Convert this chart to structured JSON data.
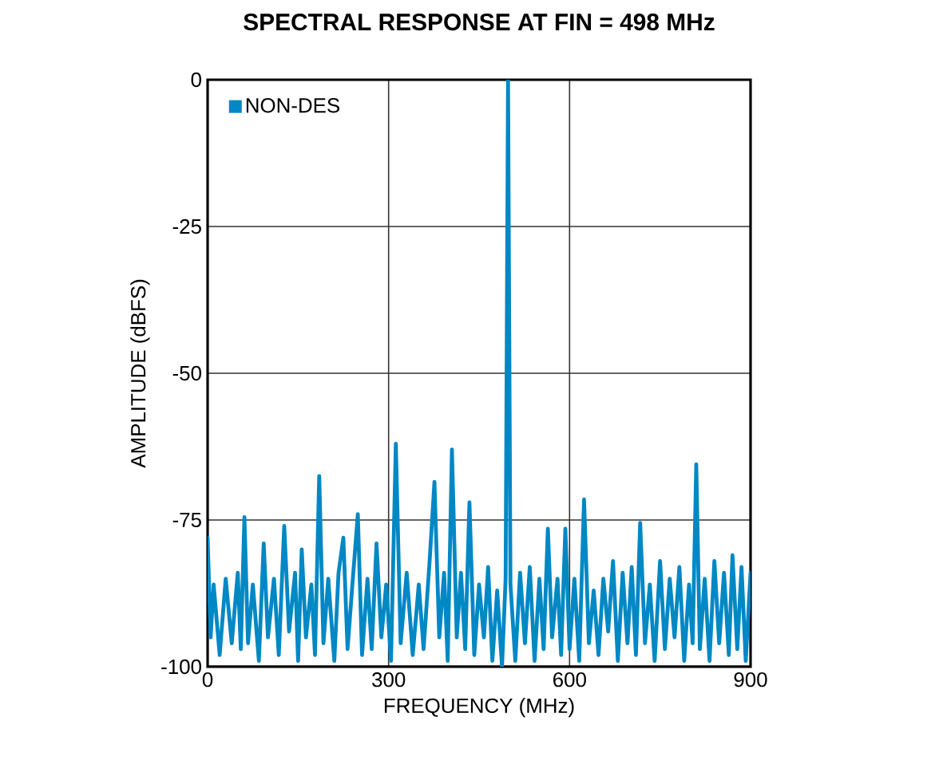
{
  "chart_data": {
    "type": "line",
    "title": "SPECTRAL RESPONSE AT FIN = 498 MHz",
    "xlabel": "FREQUENCY (MHz)",
    "ylabel": "AMPLITUDE (dBFS)",
    "x": [
      0,
      5,
      10,
      20,
      30,
      40,
      50,
      55,
      61,
      67,
      75,
      85,
      93,
      100,
      110,
      118,
      127,
      135,
      145,
      150,
      156,
      163,
      172,
      178,
      185,
      192,
      200,
      210,
      217,
      225,
      232,
      240,
      249,
      256,
      265,
      272,
      280,
      288,
      296,
      304,
      312,
      320,
      330,
      340,
      350,
      358,
      368,
      376,
      384,
      392,
      398,
      405,
      413,
      420,
      427,
      434,
      442,
      450,
      458,
      465,
      472,
      480,
      488,
      494,
      498,
      502,
      510,
      518,
      526,
      534,
      542,
      550,
      557,
      564,
      571,
      580,
      586,
      593,
      600,
      608,
      616,
      624,
      632,
      640,
      648,
      656,
      664,
      672,
      680,
      688,
      696,
      703,
      710,
      717,
      725,
      733,
      741,
      750,
      758,
      766,
      774,
      782,
      790,
      798,
      804,
      810,
      816,
      824,
      832,
      840,
      848,
      856,
      864,
      870,
      878,
      885,
      892,
      900
    ],
    "series": [
      {
        "name": "NON-DES",
        "color": "#0088c4",
        "values": [
          -78,
          -95,
          -86,
          -98,
          -85,
          -96,
          -84,
          -97,
          -74.5,
          -96,
          -86,
          -99,
          -79,
          -95,
          -85,
          -98,
          -76,
          -94,
          -84,
          -99,
          -80,
          -95,
          -86,
          -98,
          -67.5,
          -96,
          -85,
          -99,
          -84,
          -78,
          -97,
          -86,
          -74,
          -98,
          -85,
          -97,
          -79,
          -95,
          -86,
          -99,
          -62,
          -96,
          -84,
          -98,
          -86,
          -97,
          -82,
          -68.5,
          -95,
          -84,
          -99,
          -63,
          -95,
          -84,
          -97,
          -72,
          -98,
          -86,
          -95,
          -83,
          -99,
          -87,
          -100,
          -85,
          0,
          -86,
          -99,
          -84,
          -96,
          -83,
          -99,
          -85,
          -97,
          -76.5,
          -95,
          -85,
          -98,
          -76.5,
          -97,
          -85,
          -99,
          -71.5,
          -96,
          -87,
          -98,
          -85,
          -94,
          -82,
          -99,
          -84,
          -96,
          -83,
          -98,
          -75.5,
          -96,
          -86,
          -99,
          -82,
          -97,
          -85,
          -95,
          -83,
          -99,
          -86,
          -96,
          -65.5,
          -97,
          -85,
          -99,
          -82,
          -96,
          -84,
          -98,
          -81,
          -97,
          -83,
          -99,
          -84
        ]
      }
    ],
    "xlim": [
      0,
      900
    ],
    "ylim": [
      -100,
      0
    ],
    "xticks": [
      0,
      300,
      600,
      900
    ],
    "yticks": [
      -100,
      -75,
      -50,
      -25,
      0
    ],
    "grid": true,
    "legend": "top left"
  }
}
